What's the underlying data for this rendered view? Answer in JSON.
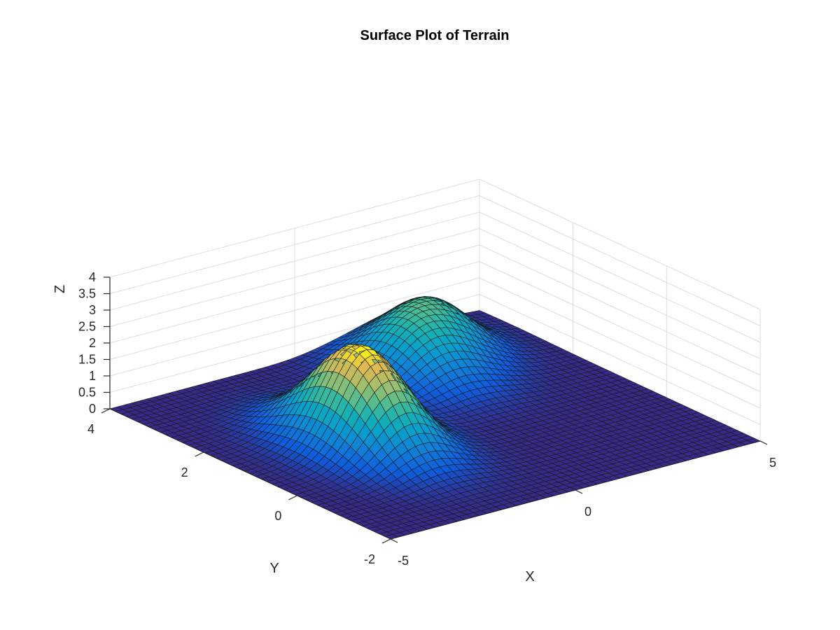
{
  "chart_data": {
    "type": "surface",
    "title": "Surface Plot of Terrain",
    "xlabel": "X",
    "ylabel": "Y",
    "zlabel": "Z",
    "xlim": [
      -5,
      5
    ],
    "ylim": [
      -2,
      4
    ],
    "zlim": [
      0,
      4
    ],
    "xticks": [
      -5,
      0,
      5
    ],
    "xtick_labels": [
      "-5",
      "0",
      "5"
    ],
    "yticks": [
      -2,
      0,
      2,
      4
    ],
    "ytick_labels": [
      "-2",
      "0",
      "2",
      "4"
    ],
    "zticks": [
      0,
      0.5,
      1,
      1.5,
      2,
      2.5,
      3,
      3.5,
      4
    ],
    "ztick_labels": [
      "0",
      "0.5",
      "1",
      "1.5",
      "2",
      "2.5",
      "3",
      "3.5",
      "4"
    ],
    "grid": true,
    "colormap": "parula",
    "grid_resolution": [
      51,
      51
    ],
    "surface_function": "sum of gaussian peaks",
    "peaks": [
      {
        "x0": -2.0,
        "y0": 1.0,
        "amplitude": 3.0,
        "sigma_x": 0.85,
        "sigma_y": 0.85
      },
      {
        "x0": 1.5,
        "y0": 2.6,
        "amplitude": 1.5,
        "sigma_x": 0.9,
        "sigma_y": 0.75
      },
      {
        "x0": 2.8,
        "y0": 3.2,
        "amplitude": 1.2,
        "sigma_x": 0.8,
        "sigma_y": 0.65
      }
    ],
    "colors": {
      "edge": "#1a1a1a",
      "grid": "#dcdcdc",
      "axis": "#262626",
      "background": "#ffffff"
    }
  }
}
